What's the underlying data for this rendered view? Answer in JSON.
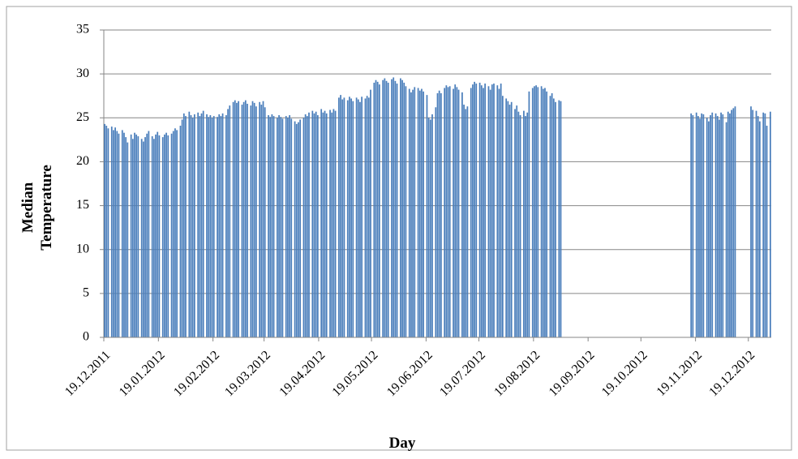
{
  "chart_data": {
    "type": "bar",
    "ylabel": [
      "Median",
      "Temperature"
    ],
    "xlabel": "Day",
    "color": "#4a7ebb",
    "grid": true,
    "ylim": [
      0,
      35
    ],
    "yticks": [
      0,
      5,
      10,
      15,
      20,
      25,
      30,
      35
    ],
    "categories": [
      "19.12.2011",
      null,
      null,
      null,
      null,
      null,
      null,
      null,
      null,
      null,
      null,
      null,
      null,
      null,
      null,
      null,
      null,
      null,
      null,
      null,
      null,
      null,
      null,
      null,
      null,
      null,
      null,
      null,
      null,
      null,
      null,
      "19.01.2012",
      null,
      null,
      null,
      null,
      null,
      null,
      null,
      null,
      null,
      null,
      null,
      null,
      null,
      null,
      null,
      null,
      null,
      null,
      null,
      null,
      null,
      null,
      null,
      null,
      null,
      null,
      null,
      null,
      null,
      null,
      "19.02.2012",
      null,
      null,
      null,
      null,
      null,
      null,
      null,
      null,
      null,
      null,
      null,
      null,
      null,
      null,
      null,
      null,
      null,
      null,
      null,
      null,
      null,
      null,
      null,
      null,
      null,
      null,
      null,
      null,
      "19.03.2012",
      null,
      null,
      null,
      null,
      null,
      null,
      null,
      null,
      null,
      null,
      null,
      null,
      null,
      null,
      null,
      null,
      null,
      null,
      null,
      null,
      null,
      null,
      null,
      null,
      null,
      null,
      null,
      null,
      null,
      null,
      "19.04.2012",
      null,
      null,
      null,
      null,
      null,
      null,
      null,
      null,
      null,
      null,
      null,
      null,
      null,
      null,
      null,
      null,
      null,
      null,
      null,
      null,
      null,
      null,
      null,
      null,
      null,
      null,
      null,
      null,
      null,
      "19.05.2012",
      null,
      null,
      null,
      null,
      null,
      null,
      null,
      null,
      null,
      null,
      null,
      null,
      null,
      null,
      null,
      null,
      null,
      null,
      null,
      null,
      null,
      null,
      null,
      null,
      null,
      null,
      null,
      null,
      null,
      null,
      "19.06.2012",
      null,
      null,
      null,
      null,
      null,
      null,
      null,
      null,
      null,
      null,
      null,
      null,
      null,
      null,
      null,
      null,
      null,
      null,
      null,
      null,
      null,
      null,
      null,
      null,
      null,
      null,
      null,
      null,
      null,
      "19.07.2012",
      null,
      null,
      null,
      null,
      null,
      null,
      null,
      null,
      null,
      null,
      null,
      null,
      null,
      null,
      null,
      null,
      null,
      null,
      null,
      null,
      null,
      null,
      null,
      null,
      null,
      null,
      null,
      null,
      null,
      null,
      "19.08.2012",
      null,
      null,
      null,
      null,
      null,
      null,
      null,
      null,
      null,
      null,
      null,
      null,
      null,
      null,
      null,
      null,
      null,
      null,
      null,
      null,
      null,
      null,
      null,
      null,
      null,
      null,
      null,
      null,
      null,
      null,
      "19.09.2012",
      null,
      null,
      null,
      null,
      null,
      null,
      null,
      null,
      null,
      null,
      null,
      null,
      null,
      null,
      null,
      null,
      null,
      null,
      null,
      null,
      null,
      null,
      null,
      null,
      null,
      null,
      null,
      null,
      null,
      "19.10.2012",
      null,
      null,
      null,
      null,
      null,
      null,
      null,
      null,
      null,
      null,
      null,
      null,
      null,
      null,
      null,
      null,
      null,
      null,
      null,
      null,
      null,
      null,
      null,
      null,
      null,
      null,
      null,
      null,
      null,
      null,
      "19.11.2012",
      null,
      null,
      null,
      null,
      null,
      null,
      null,
      null,
      null,
      null,
      null,
      null,
      null,
      null,
      null,
      null,
      null,
      null,
      null,
      null,
      null,
      null,
      null,
      null,
      null,
      null,
      null,
      null,
      null,
      "19.12.2012",
      null,
      null,
      null,
      null,
      null,
      null,
      null,
      null,
      null,
      null,
      null,
      null
    ],
    "values": [
      24.3,
      24.1,
      23.8,
      null,
      24.0,
      23.6,
      23.9,
      23.5,
      23.2,
      null,
      23.6,
      23.3,
      22.8,
      22.2,
      null,
      23.1,
      22.6,
      23.3,
      23.1,
      22.9,
      null,
      22.6,
      22.3,
      22.8,
      23.2,
      23.5,
      null,
      22.9,
      22.6,
      23.1,
      23.4,
      23.0,
      null,
      22.8,
      23.1,
      23.3,
      23.0,
      null,
      23.2,
      23.5,
      23.8,
      23.6,
      null,
      24.1,
      24.8,
      25.5,
      25.2,
      null,
      25.7,
      25.3,
      25.0,
      25.4,
      null,
      25.6,
      25.2,
      25.5,
      25.8,
      null,
      25.4,
      25.1,
      25.3,
      25.0,
      25.2,
      null,
      25.1,
      25.4,
      25.2,
      25.5,
      null,
      25.3,
      26.0,
      26.4,
      null,
      26.8,
      27.0,
      26.7,
      26.9,
      null,
      26.5,
      26.8,
      27.0,
      26.6,
      null,
      26.4,
      26.9,
      26.7,
      26.3,
      null,
      26.8,
      26.5,
      26.9,
      26.2,
      null,
      25.3,
      25.1,
      25.4,
      25.2,
      null,
      25.0,
      25.3,
      25.1,
      24.9,
      null,
      25.2,
      25.0,
      25.3,
      24.9,
      null,
      24.6,
      24.3,
      24.5,
      24.8,
      null,
      25.0,
      25.4,
      25.2,
      25.6,
      null,
      25.8,
      25.5,
      25.7,
      25.3,
      null,
      26.0,
      25.6,
      25.8,
      25.5,
      null,
      25.9,
      25.6,
      26.0,
      25.8,
      null,
      27.3,
      27.6,
      27.1,
      27.3,
      null,
      27.0,
      27.4,
      27.2,
      26.9,
      null,
      27.3,
      27.1,
      26.8,
      27.4,
      null,
      27.2,
      27.5,
      27.3,
      28.2,
      null,
      29.0,
      29.3,
      29.1,
      28.8,
      null,
      29.3,
      29.5,
      29.2,
      29.0,
      null,
      29.4,
      29.6,
      29.2,
      28.9,
      null,
      29.5,
      29.3,
      29.0,
      28.6,
      null,
      28.3,
      27.9,
      28.2,
      28.5,
      null,
      28.4,
      28.1,
      28.3,
      28.0,
      null,
      27.6,
      25.0,
      24.8,
      25.4,
      null,
      26.2,
      27.8,
      28.1,
      27.8,
      null,
      28.4,
      28.7,
      28.5,
      28.6,
      null,
      28.3,
      28.8,
      28.5,
      28.2,
      null,
      27.9,
      26.5,
      26.0,
      26.3,
      null,
      28.4,
      28.8,
      29.1,
      28.9,
      null,
      29.0,
      28.7,
      28.4,
      28.9,
      null,
      28.6,
      28.2,
      28.8,
      28.9,
      null,
      28.7,
      28.3,
      28.9,
      27.5,
      null,
      27.2,
      26.9,
      26.5,
      26.8,
      null,
      26.0,
      26.4,
      25.7,
      25.3,
      null,
      25.8,
      25.2,
      25.6,
      28.0,
      null,
      28.4,
      28.6,
      28.7,
      28.5,
      null,
      28.6,
      28.3,
      28.4,
      28.0,
      null,
      27.5,
      27.8,
      27.2,
      26.8,
      null,
      27.0,
      26.9,
      null,
      null,
      null,
      null,
      null,
      null,
      null,
      null,
      null,
      null,
      null,
      null,
      null,
      null,
      null,
      null,
      null,
      null,
      null,
      null,
      null,
      null,
      null,
      null,
      null,
      null,
      null,
      null,
      null,
      null,
      null,
      null,
      null,
      null,
      null,
      null,
      null,
      null,
      null,
      null,
      null,
      null,
      null,
      null,
      null,
      null,
      null,
      null,
      null,
      null,
      null,
      null,
      null,
      null,
      null,
      null,
      null,
      null,
      null,
      null,
      null,
      null,
      null,
      null,
      null,
      null,
      null,
      null,
      null,
      null,
      null,
      null,
      null,
      25.5,
      25.3,
      null,
      25.6,
      25.2,
      24.9,
      25.5,
      25.4,
      null,
      25.0,
      24.6,
      25.3,
      25.6,
      null,
      25.5,
      25.2,
      24.8,
      25.6,
      25.4,
      null,
      24.5,
      25.7,
      25.5,
      25.9,
      26.1,
      26.3,
      null,
      null,
      null,
      null,
      null,
      null,
      null,
      null,
      26.3,
      25.9,
      null,
      25.8,
      25.2,
      24.6,
      null,
      25.6,
      25.5,
      24.1,
      null,
      25.7
    ]
  }
}
